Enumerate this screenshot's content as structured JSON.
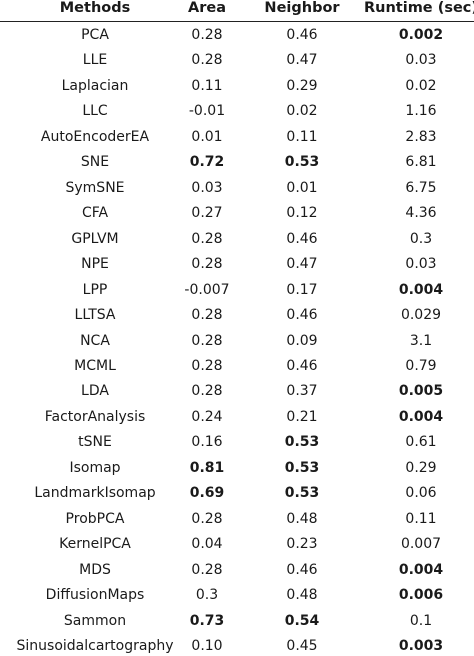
{
  "table": {
    "header": [
      "Methods",
      "Area",
      "Neighbor",
      "Runtime (sec)"
    ],
    "rows": [
      [
        "PCA",
        "0.28",
        "0.46",
        {
          "text": "0.002",
          "bold": true
        }
      ],
      [
        "LLE",
        "0.28",
        "0.47",
        "0.03"
      ],
      [
        "Laplacian",
        "0.11",
        "0.29",
        "0.02"
      ],
      [
        "LLC",
        "-0.01",
        "0.02",
        "1.16"
      ],
      [
        "AutoEncoderEA",
        "0.01",
        "0.11",
        "2.83"
      ],
      [
        "SNE",
        {
          "text": "0.72",
          "bold": true
        },
        {
          "text": "0.53",
          "bold": true
        },
        "6.81"
      ],
      [
        "SymSNE",
        "0.03",
        "0.01",
        "6.75"
      ],
      [
        "CFA",
        "0.27",
        "0.12",
        "4.36"
      ],
      [
        "GPLVM",
        "0.28",
        "0.46",
        "0.3"
      ],
      [
        "NPE",
        "0.28",
        "0.47",
        "0.03"
      ],
      [
        "LPP",
        "-0.007",
        "0.17",
        {
          "text": "0.004",
          "bold": true
        }
      ],
      [
        "LLTSA",
        "0.28",
        "0.46",
        "0.029"
      ],
      [
        "NCA",
        "0.28",
        "0.09",
        "3.1"
      ],
      [
        "MCML",
        "0.28",
        "0.46",
        "0.79"
      ],
      [
        "LDA",
        "0.28",
        "0.37",
        {
          "text": "0.005",
          "bold": true
        }
      ],
      [
        "FactorAnalysis",
        "0.24",
        "0.21",
        {
          "text": "0.004",
          "bold": true
        }
      ],
      [
        "tSNE",
        "0.16",
        {
          "text": "0.53",
          "bold": true
        },
        "0.61"
      ],
      [
        "Isomap",
        {
          "text": "0.81",
          "bold": true
        },
        {
          "text": "0.53",
          "bold": true
        },
        "0.29"
      ],
      [
        "LandmarkIsomap",
        {
          "text": "0.69",
          "bold": true
        },
        {
          "text": "0.53",
          "bold": true
        },
        "0.06"
      ],
      [
        "ProbPCA",
        "0.28",
        "0.48",
        "0.11"
      ],
      [
        "KernelPCA",
        "0.04",
        "0.23",
        "0.007"
      ],
      [
        "MDS",
        "0.28",
        "0.46",
        {
          "text": "0.004",
          "bold": true
        }
      ],
      [
        "DiffusionMaps",
        "0.3",
        "0.48",
        {
          "text": "0.006",
          "bold": true
        }
      ],
      [
        "Sammon",
        {
          "text": "0.73",
          "bold": true
        },
        {
          "text": "0.54",
          "bold": true
        },
        "0.1"
      ],
      [
        "Sinusoidalcartography",
        "0.10",
        "0.45",
        {
          "text": "0.003",
          "bold": true
        }
      ]
    ]
  }
}
